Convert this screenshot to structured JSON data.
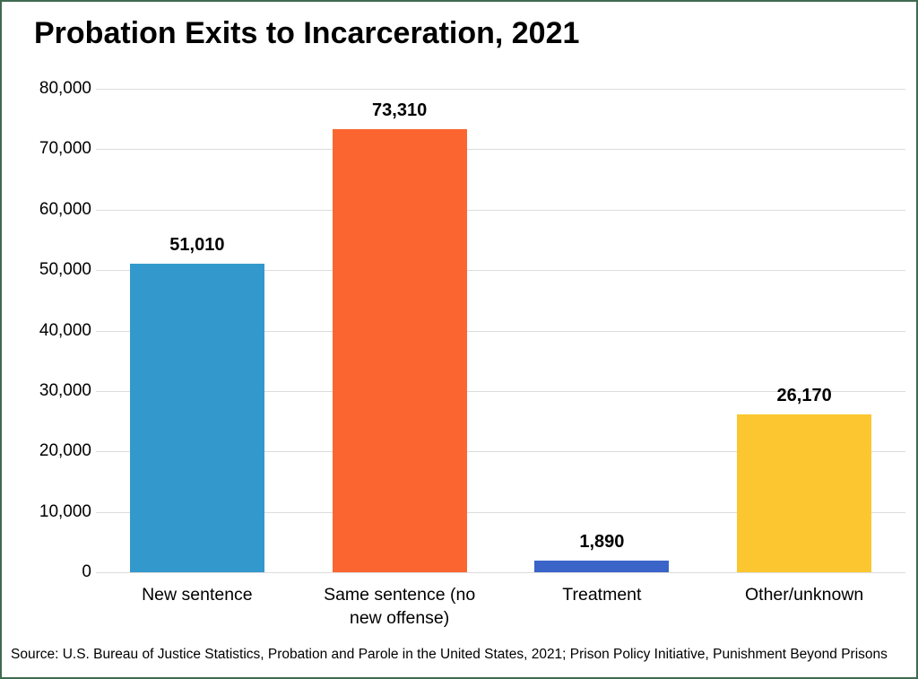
{
  "title": "Probation Exits to Incarceration, 2021",
  "source_note": "Source: U.S. Bureau of Justice Statistics, Probation and Parole in the United States, 2021; Prison Policy Initiative, Punishment Beyond Prisons",
  "colors": {
    "background": "#ffffff",
    "frame_border": "#3f6a50",
    "gridline": "#dcdcdc",
    "text": "#000000"
  },
  "chart_data": {
    "type": "bar",
    "title": "Probation Exits to Incarceration, 2021",
    "categories": [
      "New sentence",
      "Same sentence (no new offense)",
      "Treatment",
      "Other/unknown"
    ],
    "values": [
      51010,
      73310,
      1890,
      26170
    ],
    "value_labels": [
      "51,010",
      "73,310",
      "1,890",
      "26,170"
    ],
    "bar_colors": [
      "#3399cc",
      "#fb6630",
      "#3a64c8",
      "#fcc630"
    ],
    "xlabel": "",
    "ylabel": "",
    "ylim": [
      0,
      80000
    ],
    "ytick_interval": 10000,
    "ytick_labels": [
      "0",
      "10,000",
      "20,000",
      "30,000",
      "40,000",
      "50,000",
      "60,000",
      "70,000",
      "80,000"
    ],
    "grid": true,
    "legend": false
  }
}
